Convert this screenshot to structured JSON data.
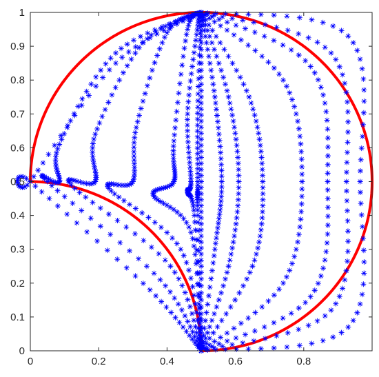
{
  "chart_data": {
    "type": "scatter",
    "title": "",
    "xlabel": "",
    "ylabel": "",
    "xlim": [
      0,
      1
    ],
    "ylim": [
      0,
      1
    ],
    "grid": false,
    "xticks": [
      0,
      0.2,
      0.4,
      0.6,
      0.8
    ],
    "xtick_labels": [
      "0",
      "0.2",
      "0.4",
      "0.6",
      "0.8"
    ],
    "yticks": [
      0,
      0.1,
      0.2,
      0.3,
      0.4,
      0.5,
      0.6,
      0.7,
      0.8,
      0.9,
      1
    ],
    "ytick_labels": [
      "0",
      "0.1",
      "0.2",
      "0.3",
      "0.4",
      "0.5",
      "0.6",
      "0.7",
      "0.8",
      "0.9",
      "1"
    ],
    "colors": {
      "boundary": "#ff0000",
      "markers": "#0000ff",
      "axes": "#262626"
    },
    "boundary": [
      {
        "shape": "arc",
        "center": [
          0.5,
          0.5
        ],
        "radius": 0.5,
        "from_deg": -90,
        "to_deg": 180
      },
      {
        "shape": "arc",
        "center": [
          0,
          0
        ],
        "radius": 0.5,
        "from_deg": 0,
        "to_deg": 90
      }
    ],
    "series": [
      {
        "marker": "*",
        "control": [
          [
            0.5,
            0
          ],
          [
            0.35,
            0.18
          ],
          [
            0.0,
            0.5
          ],
          [
            0.0,
            0.5
          ],
          [
            0.25,
            0.85
          ],
          [
            0.5,
            1.0
          ]
        ]
      },
      {
        "marker": "*",
        "control": [
          [
            0.5,
            0
          ],
          [
            0.38,
            0.21
          ],
          [
            0.05,
            0.5
          ],
          [
            0.085,
            0.5
          ],
          [
            0.085,
            0.61
          ],
          [
            0.25,
            0.88
          ],
          [
            0.5,
            1.0
          ]
        ]
      },
      {
        "marker": "*",
        "control": [
          [
            0.5,
            0
          ],
          [
            0.41,
            0.25
          ],
          [
            0.12,
            0.49
          ],
          [
            0.19,
            0.5
          ],
          [
            0.19,
            0.64
          ],
          [
            0.33,
            0.91
          ],
          [
            0.5,
            1.0
          ]
        ]
      },
      {
        "marker": "*",
        "control": [
          [
            0.5,
            0
          ],
          [
            0.44,
            0.3
          ],
          [
            0.23,
            0.48
          ],
          [
            0.3,
            0.5
          ],
          [
            0.31,
            0.66
          ],
          [
            0.4,
            0.94
          ],
          [
            0.5,
            1.0
          ]
        ]
      },
      {
        "marker": "*",
        "control": [
          [
            0.5,
            0
          ],
          [
            0.47,
            0.35
          ],
          [
            0.36,
            0.46
          ],
          [
            0.42,
            0.5
          ],
          [
            0.42,
            0.62
          ],
          [
            0.46,
            0.95
          ],
          [
            0.5,
            1.0
          ]
        ]
      },
      {
        "marker": "*",
        "control": [
          [
            0.5,
            0
          ],
          [
            0.48,
            0.4
          ],
          [
            0.46,
            0.47
          ],
          [
            0.47,
            0.5
          ],
          [
            0.46,
            0.7
          ],
          [
            0.49,
            0.96
          ],
          [
            0.5,
            1.0
          ]
        ]
      },
      {
        "marker": "*",
        "control": [
          [
            0.5,
            0
          ],
          [
            0.49,
            0.4
          ],
          [
            0.49,
            0.5
          ],
          [
            0.49,
            0.72
          ],
          [
            0.5,
            1.0
          ]
        ]
      },
      {
        "marker": "*",
        "control": [
          [
            0.5,
            0
          ],
          [
            0.5,
            0.25
          ],
          [
            0.5,
            0.5
          ],
          [
            0.5,
            0.75
          ],
          [
            0.5,
            1.0
          ]
        ]
      },
      {
        "marker": "*",
        "control": [
          [
            0.5,
            0
          ],
          [
            0.54,
            0.3
          ],
          [
            0.56,
            0.5
          ],
          [
            0.54,
            0.75
          ],
          [
            0.5,
            1.0
          ]
        ]
      },
      {
        "marker": "*",
        "control": [
          [
            0.5,
            0
          ],
          [
            0.58,
            0.25
          ],
          [
            0.61,
            0.5
          ],
          [
            0.58,
            0.75
          ],
          [
            0.5,
            1.0
          ]
        ]
      },
      {
        "marker": "*",
        "control": [
          [
            0.5,
            0
          ],
          [
            0.65,
            0.25
          ],
          [
            0.68,
            0.5
          ],
          [
            0.64,
            0.75
          ],
          [
            0.5,
            1.0
          ]
        ]
      },
      {
        "marker": "*",
        "control": [
          [
            0.5,
            0
          ],
          [
            0.74,
            0.2
          ],
          [
            0.795,
            0.5
          ],
          [
            0.74,
            0.8
          ],
          [
            0.5,
            1.0
          ]
        ]
      },
      {
        "marker": "*",
        "control": [
          [
            0.5,
            0
          ],
          [
            0.82,
            0.16
          ],
          [
            0.87,
            0.5
          ],
          [
            0.82,
            0.84
          ],
          [
            0.5,
            1.0
          ]
        ]
      },
      {
        "marker": "*",
        "control": [
          [
            0.5,
            0
          ],
          [
            0.88,
            0.12
          ],
          [
            0.925,
            0.5
          ],
          [
            0.88,
            0.88
          ],
          [
            0.5,
            1.0
          ]
        ]
      },
      {
        "marker": "*",
        "control": [
          [
            0.5,
            0
          ],
          [
            0.93,
            0.07
          ],
          [
            0.965,
            0.5
          ],
          [
            0.93,
            0.93
          ],
          [
            0.5,
            1.0
          ]
        ]
      }
    ]
  }
}
